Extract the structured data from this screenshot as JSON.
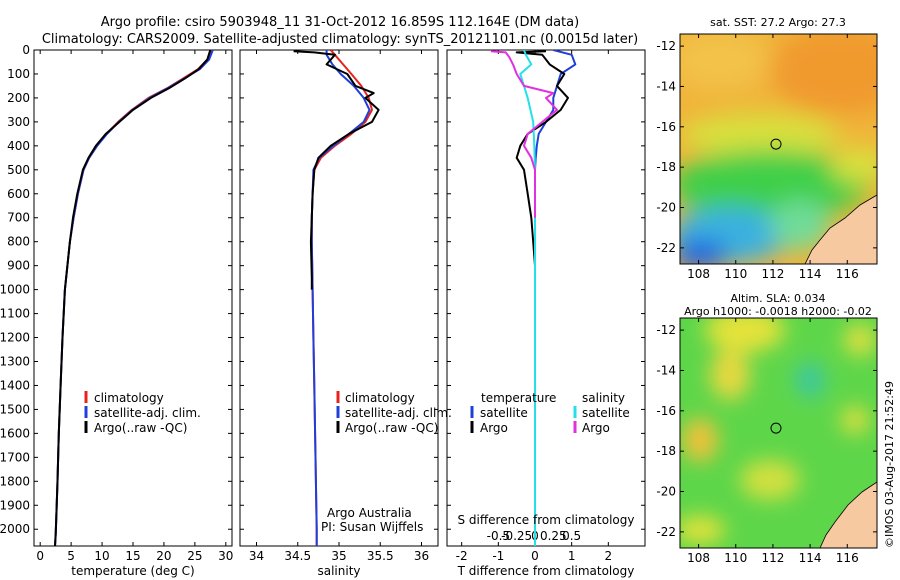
{
  "header": {
    "title_line1": "Argo profile: csiro 5903948_11 31-Oct-2012 16.859S 112.164E (DM data)",
    "title_line2": "Climatology: CARS2009. Satellite-adjusted climatology: synTS_20121101.nc (0.0015d later)"
  },
  "colors": {
    "climatology": "#e8231e",
    "satellite": "#1f3fd8",
    "argo": "#000000",
    "sal_satellite": "#25e0e8",
    "sal_argo": "#e030e0"
  },
  "chart_data": [
    {
      "type": "line",
      "name": "temperature-profile",
      "xlabel": "temperature (deg C)",
      "xlim": [
        -1,
        31
      ],
      "ylim": [
        2070,
        0
      ],
      "xticks": [
        0,
        5,
        10,
        15,
        20,
        25,
        30
      ],
      "yticks": [
        0,
        100,
        200,
        300,
        400,
        500,
        600,
        700,
        800,
        900,
        1000,
        1100,
        1200,
        1300,
        1400,
        1500,
        1600,
        1700,
        1800,
        1900,
        2000
      ],
      "legend": [
        "climatology",
        "satellite-adj. clim.",
        "Argo(..raw -QC)"
      ],
      "series": [
        {
          "name": "climatology",
          "color_key": "climatology",
          "x": [
            27.6,
            27.0,
            25.5,
            23.0,
            20.5,
            17.5,
            14.8,
            12.6,
            10.7,
            9.2,
            7.9,
            7.0,
            6.1,
            5.4,
            4.8,
            4.4,
            4.0,
            3.6,
            3.3,
            3.0,
            2.8,
            2.6,
            2.5,
            2.4
          ],
          "y": [
            0,
            40,
            80,
            120,
            160,
            200,
            250,
            300,
            350,
            400,
            450,
            500,
            600,
            700,
            800,
            900,
            1000,
            1200,
            1400,
            1600,
            1800,
            1950,
            2020,
            2070
          ]
        },
        {
          "name": "satellite-adj. clim.",
          "color_key": "satellite",
          "x": [
            27.9,
            27.3,
            25.8,
            23.2,
            20.6,
            17.7,
            14.9,
            12.7,
            10.8,
            9.2,
            7.9,
            7.0,
            6.1,
            5.4,
            4.8,
            4.4,
            4.0,
            3.6,
            3.3,
            3.0,
            2.8,
            2.6,
            2.5,
            2.4
          ],
          "y": [
            0,
            40,
            80,
            120,
            160,
            200,
            250,
            300,
            350,
            400,
            450,
            500,
            600,
            700,
            800,
            900,
            1000,
            1200,
            1400,
            1600,
            1800,
            1950,
            2020,
            2070
          ]
        },
        {
          "name": "Argo(..raw -QC)",
          "color_key": "argo",
          "x": [
            27.5,
            27.0,
            25.6,
            23.3,
            20.8,
            17.9,
            15.0,
            12.8,
            10.6,
            9.0,
            7.8,
            6.9,
            6.0,
            5.3,
            4.8,
            4.4,
            4.0,
            3.6,
            3.3,
            3.0,
            2.8,
            2.6,
            2.5,
            2.4
          ],
          "y": [
            0,
            40,
            80,
            120,
            160,
            200,
            250,
            300,
            350,
            400,
            450,
            500,
            600,
            700,
            800,
            900,
            1000,
            1200,
            1400,
            1600,
            1800,
            1950,
            2020,
            2070
          ]
        }
      ]
    },
    {
      "type": "line",
      "name": "salinity-profile",
      "xlabel": "salinity",
      "xlim": [
        33.8,
        36.2
      ],
      "ylim": [
        2070,
        0
      ],
      "xticks": [
        34,
        34.5,
        35,
        35.5,
        36
      ],
      "legend": [
        "climatology",
        "satellite-adj. clim.",
        "Argo(..raw -QC)"
      ],
      "annotation": [
        "Argo Australia",
        "PI: Susan Wijffels"
      ],
      "series": [
        {
          "name": "climatology",
          "color_key": "climatology",
          "x": [
            34.9,
            34.95,
            35.05,
            35.15,
            35.27,
            35.36,
            35.4,
            35.32,
            35.15,
            34.95,
            34.78,
            34.7,
            34.68,
            34.67,
            34.67,
            34.68,
            34.69,
            34.7,
            34.71,
            34.72,
            34.73,
            34.73
          ],
          "y": [
            0,
            20,
            60,
            100,
            150,
            200,
            250,
            300,
            350,
            400,
            450,
            500,
            600,
            700,
            800,
            1000,
            1200,
            1400,
            1600,
            1800,
            2000,
            2070
          ]
        },
        {
          "name": "satellite-adj. clim.",
          "color_key": "satellite",
          "x": [
            34.85,
            34.85,
            34.92,
            35.02,
            35.18,
            35.3,
            35.37,
            35.3,
            35.12,
            34.93,
            34.76,
            34.69,
            34.68,
            34.67,
            34.67,
            34.68,
            34.69,
            34.7,
            34.71,
            34.72,
            34.73,
            34.73
          ],
          "y": [
            0,
            20,
            60,
            100,
            150,
            200,
            250,
            300,
            350,
            400,
            450,
            500,
            600,
            700,
            800,
            1000,
            1200,
            1400,
            1600,
            1800,
            2000,
            2070
          ]
        },
        {
          "name": "Argo(..raw -QC)",
          "color_key": "argo",
          "x": [
            34.45,
            34.7,
            34.95,
            34.85,
            35.1,
            35.2,
            35.42,
            35.32,
            35.48,
            35.4,
            35.12,
            34.9,
            34.75,
            34.7,
            34.68,
            34.67,
            34.66,
            34.67,
            34.67
          ],
          "y": [
            5,
            10,
            20,
            60,
            100,
            150,
            180,
            200,
            250,
            300,
            350,
            400,
            450,
            500,
            600,
            700,
            800,
            950,
            1000
          ]
        }
      ]
    },
    {
      "type": "line",
      "name": "difference-profile",
      "xlabel": "T difference from climatology",
      "xlabel_top": "S difference from climatology",
      "xlim": [
        -2.4,
        3.0
      ],
      "ylim": [
        2070,
        0
      ],
      "xticks": [
        -2,
        -1,
        0,
        1,
        2
      ],
      "xticks_s_labels": [
        "-0.5",
        "-0.25",
        "0",
        "0.25",
        "0.5"
      ],
      "legend_t_header": "temperature",
      "legend_s_header": "salinity",
      "legend": [
        "satellite",
        "Argo",
        "satellite",
        "Argo"
      ],
      "series": [
        {
          "name": "T satellite",
          "color_key": "satellite",
          "x": [
            0.5,
            1.0,
            1.1,
            0.7,
            0.6,
            0.5,
            0.5,
            0.3,
            0.1,
            0.05,
            0.02,
            0.0,
            0.0,
            0.0
          ],
          "y": [
            0,
            20,
            60,
            100,
            150,
            200,
            250,
            300,
            350,
            400,
            450,
            500,
            700,
            2070
          ]
        },
        {
          "name": "T Argo",
          "color_key": "argo",
          "x": [
            0.3,
            -0.5,
            0.2,
            0.4,
            0.8,
            0.6,
            0.9,
            0.7,
            0.3,
            -0.2,
            -0.4,
            -0.5,
            -0.3,
            -0.2,
            -0.1,
            -0.05,
            0.0,
            0.0,
            0.0,
            0.0
          ],
          "y": [
            5,
            10,
            20,
            60,
            100,
            150,
            200,
            250,
            300,
            350,
            400,
            450,
            500,
            600,
            700,
            800,
            900,
            1200,
            1600,
            2070
          ]
        },
        {
          "name": "S satellite",
          "color_key": "sal_satellite",
          "x": [
            -0.3,
            -0.25,
            -0.1,
            -0.4,
            -0.2,
            -0.05,
            -0.02,
            0.0,
            0.0
          ],
          "y": [
            0,
            20,
            60,
            100,
            200,
            300,
            400,
            500,
            2070
          ]
        },
        {
          "name": "S Argo",
          "color_key": "sal_argo",
          "x": [
            -1.2,
            -0.8,
            -0.7,
            -0.6,
            -0.5,
            -0.3,
            0.5,
            0.3,
            0.6,
            0.2,
            -0.2,
            -0.3,
            -0.1,
            0.0,
            0.0
          ],
          "y": [
            5,
            10,
            30,
            60,
            100,
            150,
            180,
            200,
            250,
            300,
            350,
            400,
            450,
            500,
            700
          ]
        }
      ]
    },
    {
      "type": "heatmap",
      "name": "sst-map",
      "title": "sat. SST: 27.2  Argo: 27.3",
      "xlim": [
        107,
        117.6
      ],
      "ylim": [
        -22.8,
        -11.4
      ],
      "xticks": [
        108,
        110,
        112,
        114,
        116
      ],
      "yticks": [
        -12,
        -14,
        -16,
        -18,
        -20,
        -22
      ],
      "marker": {
        "lon": 112.164,
        "lat": -16.859
      }
    },
    {
      "type": "heatmap",
      "name": "sla-map",
      "title_line1": "Altim. SLA: 0.034",
      "title_line2": "Argo h1000: -0.0018 h2000: -0.02",
      "xlim": [
        107,
        117.6
      ],
      "ylim": [
        -22.8,
        -11.4
      ],
      "xticks": [
        108,
        110,
        112,
        114,
        116
      ],
      "yticks": [
        -12,
        -14,
        -16,
        -18,
        -20,
        -22
      ],
      "marker": {
        "lon": 112.164,
        "lat": -16.859
      }
    }
  ],
  "footer": {
    "credit": "©IMOS 03-Aug-2017 21:52:49"
  }
}
